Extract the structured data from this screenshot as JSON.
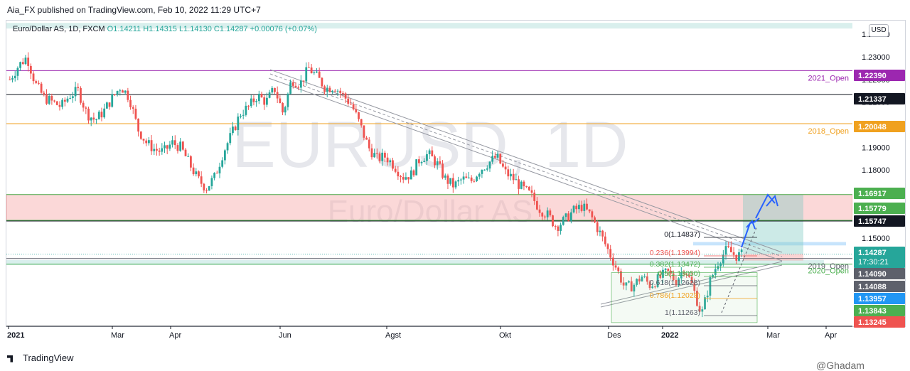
{
  "publisher_line": "Aia_FX published on TradingView.com, Feb 10, 2022 11:29 UTC+7",
  "symbol": {
    "name": "Euro/Dollar AS, 1D, FXCM",
    "ohlc_text": "O1.14211 H1.14315 L1.14130 C1.14287 +0.00076 (+0.07%)"
  },
  "currency_button": "USD",
  "watermark": {
    "main": "EURUSD, 1D",
    "sub": "Euro/Dollar AS"
  },
  "footer": {
    "brand": "TradingView",
    "user": "@Ghadam"
  },
  "colors": {
    "up": "#26a69a",
    "down": "#ef5350",
    "purple": "#9c27b0",
    "orange": "#f0a11f",
    "black": "#131722",
    "green": "#4caf50",
    "blue": "#2962ff",
    "teal_zone": "#80cbc4",
    "pink_zone": "#f7a8a8"
  },
  "chart_data": {
    "type": "candlestick",
    "title": "Euro/Dollar AS, 1D, FXCM",
    "ylim": [
      1.111,
      1.246
    ],
    "price_ticks": [
      1.24,
      1.23,
      1.22,
      1.21,
      1.2,
      1.19,
      1.18,
      1.15
    ],
    "price_tick_labels": [
      "1.24000",
      "1.23000",
      "1.22000",
      "1.21000",
      "1.20000",
      "1.19000",
      "1.18000",
      "1.15000"
    ],
    "time_labels": [
      "2021",
      "Mar",
      "Apr",
      "Jun",
      "Agst",
      "Okt",
      "Des",
      "2022",
      "Mar",
      "Apr"
    ],
    "closes": [
      1.22,
      1.226,
      1.23,
      1.218,
      1.212,
      1.21,
      1.208,
      1.213,
      1.215,
      1.205,
      1.202,
      1.206,
      1.212,
      1.217,
      1.212,
      1.198,
      1.192,
      1.189,
      1.188,
      1.192,
      1.19,
      1.183,
      1.176,
      1.172,
      1.177,
      1.188,
      1.196,
      1.205,
      1.208,
      1.213,
      1.21,
      1.216,
      1.205,
      1.22,
      1.218,
      1.225,
      1.221,
      1.216,
      1.217,
      1.213,
      1.209,
      1.2,
      1.19,
      1.185,
      1.186,
      1.182,
      1.177,
      1.178,
      1.185,
      1.187,
      1.183,
      1.176,
      1.173,
      1.176,
      1.175,
      1.18,
      1.183,
      1.186,
      1.179,
      1.176,
      1.172,
      1.169,
      1.163,
      1.16,
      1.155,
      1.158,
      1.162,
      1.164,
      1.16,
      1.153,
      1.145,
      1.137,
      1.128,
      1.129,
      1.133,
      1.129,
      1.132,
      1.135,
      1.131,
      1.137,
      1.128,
      1.116,
      1.131,
      1.14,
      1.145,
      1.142,
      1.1428
    ],
    "levels": [
      {
        "label": "2021_Open",
        "price": 1.2239,
        "tag": "1.22390",
        "color": "#9c27b0"
      },
      {
        "label": "",
        "price": 1.21337,
        "tag": "1.21337",
        "color": "#131722"
      },
      {
        "label": "2018_Open",
        "price": 1.20048,
        "tag": "1.20048",
        "color": "#f0a11f"
      },
      {
        "label": "",
        "price": 1.16917,
        "tag": "1.16917",
        "color": "#4caf50"
      },
      {
        "label": "",
        "price": 1.15779,
        "tag": "1.15779",
        "color": "#4caf50"
      },
      {
        "label": "",
        "price": 1.15747,
        "tag": "1.15747",
        "color": "#131722"
      },
      {
        "label": "2019_Open",
        "price": 1.1409,
        "tag": "1.14090",
        "color": "#5d606b"
      },
      {
        "label": "",
        "price": 1.14088,
        "tag": "1.14088",
        "color": "#5d606b"
      },
      {
        "label": "",
        "price": 1.13957,
        "tag": "1.13957",
        "color": "#2196f3"
      },
      {
        "label": "2020_Open",
        "price": 1.13843,
        "tag": "1.13843",
        "color": "#4caf50"
      },
      {
        "label": "",
        "price": 1.13245,
        "tag": "1.13245",
        "color": "#ef5350"
      }
    ],
    "current_price": {
      "tag": "1.14287",
      "countdown": "17:30:21",
      "color": "#26a69a"
    },
    "fibonacci": [
      {
        "label": "0(1.14837)",
        "color": "#131722"
      },
      {
        "label": "0.236(1.13994)",
        "color": "#ef5350"
      },
      {
        "label": "0.382(1.13472)",
        "color": "#4caf50"
      },
      {
        "label": "0.5(1.13050)",
        "color": "#4caf50"
      },
      {
        "label": "0.618(1.12628)",
        "color": "#5d606b"
      },
      {
        "label": "0.786(1.12028)",
        "color": "#f0a11f"
      },
      {
        "label": "1(1.11263)",
        "color": "#5d606b"
      }
    ]
  }
}
